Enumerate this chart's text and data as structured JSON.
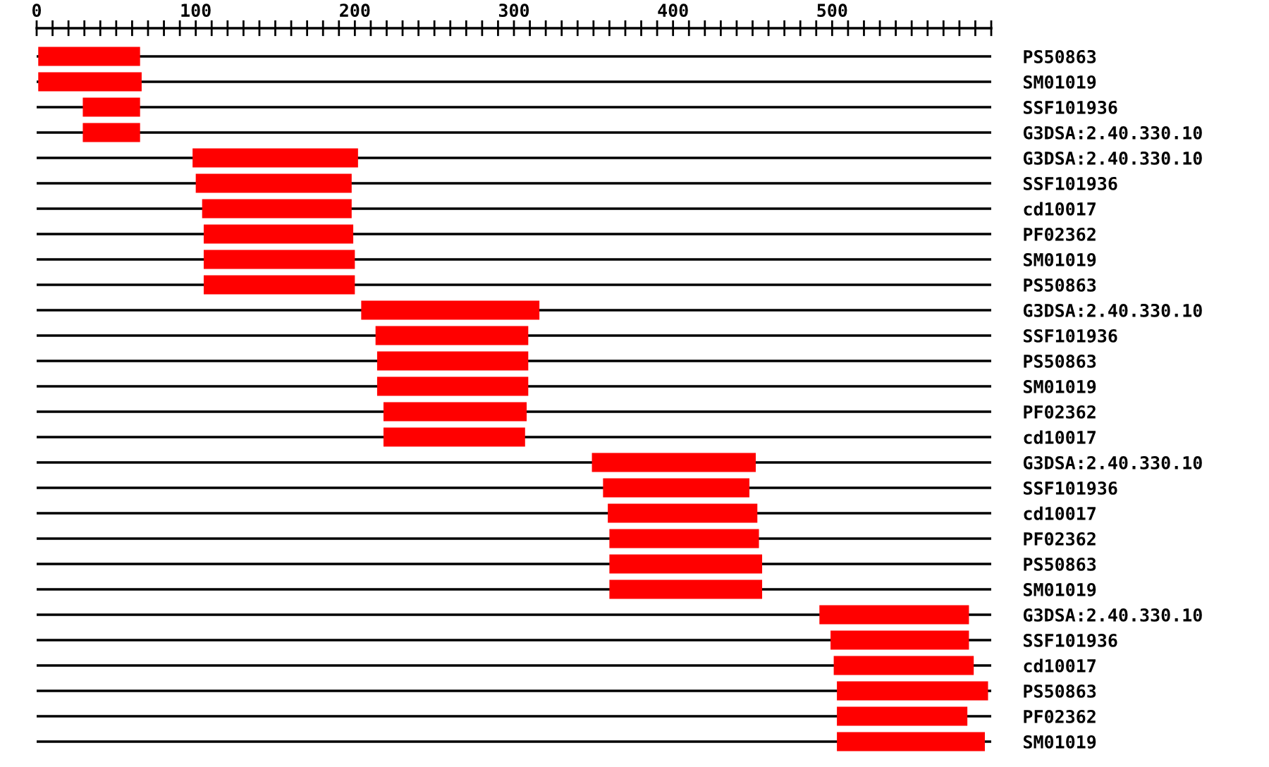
{
  "chart_data": {
    "type": "bar",
    "orientation": "horizontal",
    "grid": "y",
    "categories": [
      "PS50863",
      "SM01019",
      "SSF101936",
      "G3DSA:2.40.330.10",
      "G3DSA:2.40.330.10",
      "SSF101936",
      "cd10017",
      "PF02362",
      "SM01019",
      "PS50863",
      "G3DSA:2.40.330.10",
      "SSF101936",
      "PS50863",
      "SM01019",
      "PF02362",
      "cd10017",
      "G3DSA:2.40.330.10",
      "SSF101936",
      "cd10017",
      "PF02362",
      "PS50863",
      "SM01019",
      "G3DSA:2.40.330.10",
      "SSF101936",
      "cd10017",
      "PS50863",
      "PF02362",
      "SM01019"
    ],
    "series": [
      {
        "color": "#ff0000",
        "base": [
          1,
          1,
          29,
          29,
          98,
          100,
          104,
          105,
          105,
          105,
          204,
          213,
          214,
          214,
          218,
          218,
          349,
          356,
          359,
          360,
          360,
          360,
          492,
          499,
          501,
          503,
          503,
          503
        ],
        "values": [
          64,
          65,
          36,
          36,
          104,
          98,
          94,
          94,
          95,
          95,
          112,
          96,
          95,
          95,
          90,
          89,
          103,
          92,
          94,
          94,
          96,
          96,
          94,
          87,
          88,
          95,
          82,
          93
        ]
      }
    ],
    "xlim": [
      0,
      600
    ],
    "xticks": [
      0,
      {
        "value": 10,
        "label": null
      },
      {
        "value": 20,
        "label": null
      },
      {
        "value": 30,
        "label": null
      },
      {
        "value": 40,
        "label": null
      },
      {
        "value": 50,
        "label": null
      },
      {
        "value": 60,
        "label": null
      },
      {
        "value": 70,
        "label": null
      },
      {
        "value": 80,
        "label": null
      },
      {
        "value": 90,
        "label": null
      },
      100,
      {
        "value": 110,
        "label": null
      },
      {
        "value": 120,
        "label": null
      },
      {
        "value": 130,
        "label": null
      },
      {
        "value": 140,
        "label": null
      },
      {
        "value": 150,
        "label": null
      },
      {
        "value": 160,
        "label": null
      },
      {
        "value": 170,
        "label": null
      },
      {
        "value": 180,
        "label": null
      },
      {
        "value": 190,
        "label": null
      },
      200,
      {
        "value": 210,
        "label": null
      },
      {
        "value": 220,
        "label": null
      },
      {
        "value": 230,
        "label": null
      },
      {
        "value": 240,
        "label": null
      },
      {
        "value": 250,
        "label": null
      },
      {
        "value": 260,
        "label": null
      },
      {
        "value": 270,
        "label": null
      },
      {
        "value": 280,
        "label": null
      },
      {
        "value": 290,
        "label": null
      },
      300,
      {
        "value": 310,
        "label": null
      },
      {
        "value": 320,
        "label": null
      },
      {
        "value": 330,
        "label": null
      },
      {
        "value": 340,
        "label": null
      },
      {
        "value": 350,
        "label": null
      },
      {
        "value": 360,
        "label": null
      },
      {
        "value": 370,
        "label": null
      },
      {
        "value": 380,
        "label": null
      },
      {
        "value": 390,
        "label": null
      },
      400,
      {
        "value": 410,
        "label": null
      },
      {
        "value": 420,
        "label": null
      },
      {
        "value": 430,
        "label": null
      },
      {
        "value": 440,
        "label": null
      },
      {
        "value": 450,
        "label": null
      },
      {
        "value": 460,
        "label": null
      },
      {
        "value": 470,
        "label": null
      },
      {
        "value": 480,
        "label": null
      },
      {
        "value": 490,
        "label": null
      },
      500,
      {
        "value": 510,
        "label": null
      },
      {
        "value": 520,
        "label": null
      },
      {
        "value": 530,
        "label": null
      },
      {
        "value": 540,
        "label": null
      },
      {
        "value": 550,
        "label": null
      },
      {
        "value": 560,
        "label": null
      },
      {
        "value": 570,
        "label": null
      },
      {
        "value": 580,
        "label": null
      },
      {
        "value": 590,
        "label": null
      },
      {
        "value": 600,
        "label": null
      }
    ]
  }
}
